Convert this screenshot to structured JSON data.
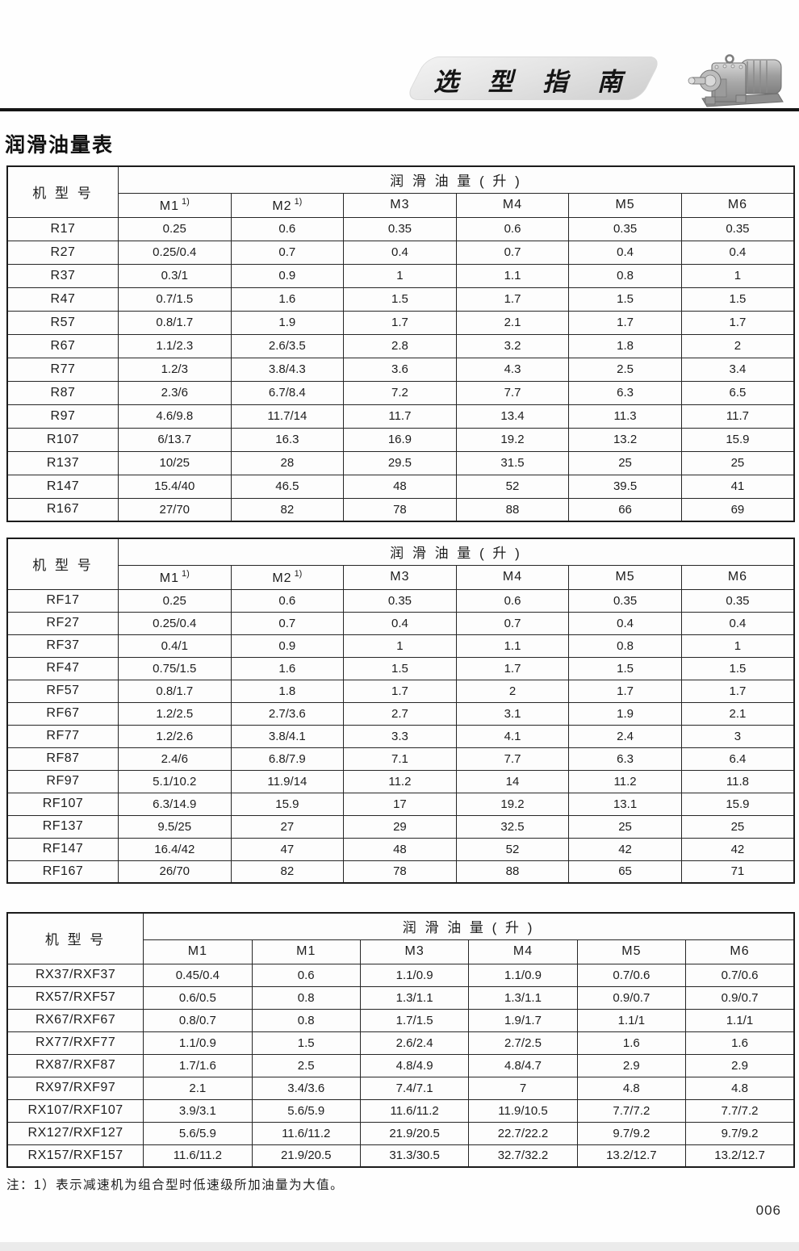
{
  "header": {
    "banner_title": "选 型 指 南",
    "section_title": "润滑油量表"
  },
  "footer": {
    "note": "注：1）表示减速机为组合型时低速级所加油量为大值。",
    "page_number": "006"
  },
  "tables": [
    {
      "model_header": "机 型 号",
      "group_header": "润 滑 油 量 ( 升 )",
      "columns": [
        {
          "label": "M1",
          "sup": "1)"
        },
        {
          "label": "M2",
          "sup": "1)"
        },
        {
          "label": "M3"
        },
        {
          "label": "M4"
        },
        {
          "label": "M5"
        },
        {
          "label": "M6"
        }
      ],
      "rows": [
        [
          "R17",
          "0.25",
          "0.6",
          "0.35",
          "0.6",
          "0.35",
          "0.35"
        ],
        [
          "R27",
          "0.25/0.4",
          "0.7",
          "0.4",
          "0.7",
          "0.4",
          "0.4"
        ],
        [
          "R37",
          "0.3/1",
          "0.9",
          "1",
          "1.1",
          "0.8",
          "1"
        ],
        [
          "R47",
          "0.7/1.5",
          "1.6",
          "1.5",
          "1.7",
          "1.5",
          "1.5"
        ],
        [
          "R57",
          "0.8/1.7",
          "1.9",
          "1.7",
          "2.1",
          "1.7",
          "1.7"
        ],
        [
          "R67",
          "1.1/2.3",
          "2.6/3.5",
          "2.8",
          "3.2",
          "1.8",
          "2"
        ],
        [
          "R77",
          "1.2/3",
          "3.8/4.3",
          "3.6",
          "4.3",
          "2.5",
          "3.4"
        ],
        [
          "R87",
          "2.3/6",
          "6.7/8.4",
          "7.2",
          "7.7",
          "6.3",
          "6.5"
        ],
        [
          "R97",
          "4.6/9.8",
          "11.7/14",
          "11.7",
          "13.4",
          "11.3",
          "11.7"
        ],
        [
          "R107",
          "6/13.7",
          "16.3",
          "16.9",
          "19.2",
          "13.2",
          "15.9"
        ],
        [
          "R137",
          "10/25",
          "28",
          "29.5",
          "31.5",
          "25",
          "25"
        ],
        [
          "R147",
          "15.4/40",
          "46.5",
          "48",
          "52",
          "39.5",
          "41"
        ],
        [
          "R167",
          "27/70",
          "82",
          "78",
          "88",
          "66",
          "69"
        ]
      ]
    },
    {
      "model_header": "机 型 号",
      "group_header": "润 滑 油 量 ( 升 )",
      "columns": [
        {
          "label": "M1",
          "sup": "1)"
        },
        {
          "label": "M2",
          "sup": "1)"
        },
        {
          "label": "M3"
        },
        {
          "label": "M4"
        },
        {
          "label": "M5"
        },
        {
          "label": "M6"
        }
      ],
      "rows": [
        [
          "RF17",
          "0.25",
          "0.6",
          "0.35",
          "0.6",
          "0.35",
          "0.35"
        ],
        [
          "RF27",
          "0.25/0.4",
          "0.7",
          "0.4",
          "0.7",
          "0.4",
          "0.4"
        ],
        [
          "RF37",
          "0.4/1",
          "0.9",
          "1",
          "1.1",
          "0.8",
          "1"
        ],
        [
          "RF47",
          "0.75/1.5",
          "1.6",
          "1.5",
          "1.7",
          "1.5",
          "1.5"
        ],
        [
          "RF57",
          "0.8/1.7",
          "1.8",
          "1.7",
          "2",
          "1.7",
          "1.7"
        ],
        [
          "RF67",
          "1.2/2.5",
          "2.7/3.6",
          "2.7",
          "3.1",
          "1.9",
          "2.1"
        ],
        [
          "RF77",
          "1.2/2.6",
          "3.8/4.1",
          "3.3",
          "4.1",
          "2.4",
          "3"
        ],
        [
          "RF87",
          "2.4/6",
          "6.8/7.9",
          "7.1",
          "7.7",
          "6.3",
          "6.4"
        ],
        [
          "RF97",
          "5.1/10.2",
          "11.9/14",
          "11.2",
          "14",
          "11.2",
          "11.8"
        ],
        [
          "RF107",
          "6.3/14.9",
          "15.9",
          "17",
          "19.2",
          "13.1",
          "15.9"
        ],
        [
          "RF137",
          "9.5/25",
          "27",
          "29",
          "32.5",
          "25",
          "25"
        ],
        [
          "RF147",
          "16.4/42",
          "47",
          "48",
          "52",
          "42",
          "42"
        ],
        [
          "RF167",
          "26/70",
          "82",
          "78",
          "88",
          "65",
          "71"
        ]
      ]
    },
    {
      "model_header": "机 型 号",
      "group_header": "润 滑 油 量 ( 升 )",
      "columns": [
        {
          "label": "M1"
        },
        {
          "label": "M1"
        },
        {
          "label": "M3"
        },
        {
          "label": "M4"
        },
        {
          "label": "M5"
        },
        {
          "label": "M6"
        }
      ],
      "rows": [
        [
          "RX37/RXF37",
          "0.45/0.4",
          "0.6",
          "1.1/0.9",
          "1.1/0.9",
          "0.7/0.6",
          "0.7/0.6"
        ],
        [
          "RX57/RXF57",
          "0.6/0.5",
          "0.8",
          "1.3/1.1",
          "1.3/1.1",
          "0.9/0.7",
          "0.9/0.7"
        ],
        [
          "RX67/RXF67",
          "0.8/0.7",
          "0.8",
          "1.7/1.5",
          "1.9/1.7",
          "1.1/1",
          "1.1/1"
        ],
        [
          "RX77/RXF77",
          "1.1/0.9",
          "1.5",
          "2.6/2.4",
          "2.7/2.5",
          "1.6",
          "1.6"
        ],
        [
          "RX87/RXF87",
          "1.7/1.6",
          "2.5",
          "4.8/4.9",
          "4.8/4.7",
          "2.9",
          "2.9"
        ],
        [
          "RX97/RXF97",
          "2.1",
          "3.4/3.6",
          "7.4/7.1",
          "7",
          "4.8",
          "4.8"
        ],
        [
          "RX107/RXF107",
          "3.9/3.1",
          "5.6/5.9",
          "11.6/11.2",
          "11.9/10.5",
          "7.7/7.2",
          "7.7/7.2"
        ],
        [
          "RX127/RXF127",
          "5.6/5.9",
          "11.6/11.2",
          "21.9/20.5",
          "22.7/22.2",
          "9.7/9.2",
          "9.7/9.2"
        ],
        [
          "RX157/RXF157",
          "11.6/11.2",
          "21.9/20.5",
          "31.3/30.5",
          "32.7/32.2",
          "13.2/12.7",
          "13.2/12.7"
        ]
      ]
    }
  ]
}
